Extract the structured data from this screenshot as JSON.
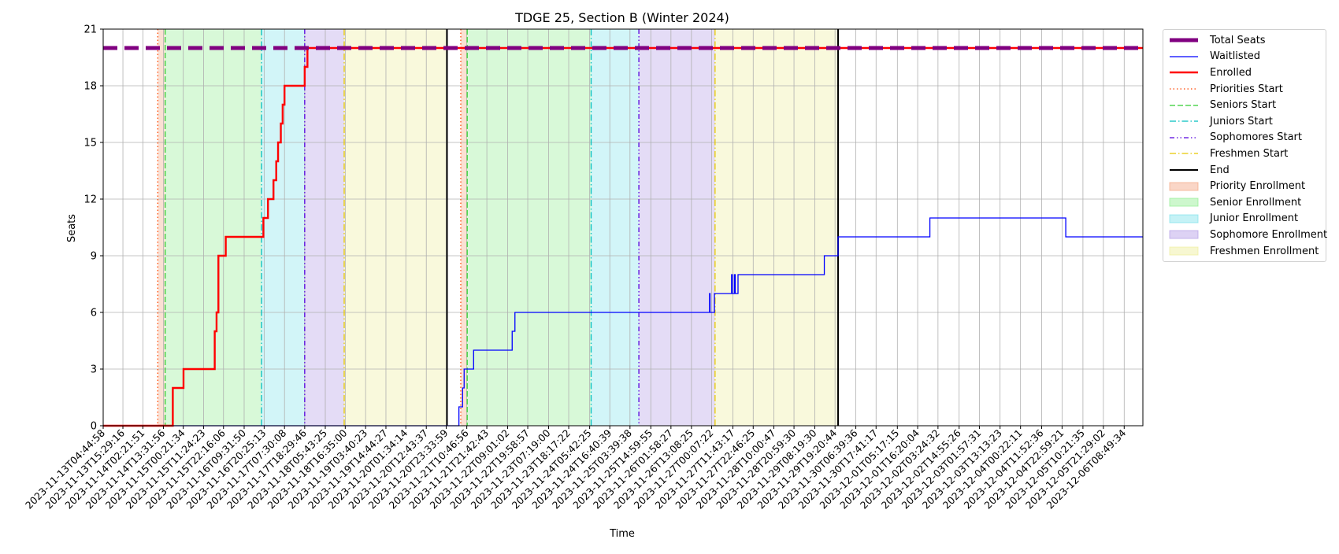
{
  "chart_data": {
    "type": "line",
    "title": "TDGE 25, Section B (Winter 2024)",
    "xlabel": "Time",
    "ylabel": "Seats",
    "ylim": [
      0,
      21
    ],
    "yticks": [
      0,
      3,
      6,
      9,
      12,
      15,
      18,
      21
    ],
    "xlim": [
      "2023-11-13T04:44:58",
      "2023-12-06T19:00:00"
    ],
    "xtick_labels": [
      "2023-11-13T04:44:58",
      "2023-11-13T15:29:16",
      "2023-11-14T02:21:51",
      "2023-11-14T13:31:56",
      "2023-11-15T00:21:34",
      "2023-11-15T11:24:23",
      "2023-11-15T22:16:06",
      "2023-11-16T09:31:50",
      "2023-11-16T20:25:13",
      "2023-11-17T07:30:08",
      "2023-11-17T18:29:46",
      "2023-11-18T05:43:25",
      "2023-11-18T16:35:00",
      "2023-11-19T03:40:23",
      "2023-11-19T14:44:27",
      "2023-11-20T01:34:14",
      "2023-11-20T12:43:37",
      "2023-11-20T23:33:59",
      "2023-11-21T10:46:56",
      "2023-11-21T21:42:43",
      "2023-11-22T09:01:02",
      "2023-11-22T19:58:57",
      "2023-11-23T07:19:00",
      "2023-11-23T18:17:22",
      "2023-11-24T05:42:25",
      "2023-11-24T16:40:39",
      "2023-11-25T03:39:38",
      "2023-11-25T14:59:55",
      "2023-11-26T01:58:27",
      "2023-11-26T13:08:25",
      "2023-11-27T00:07:22",
      "2023-11-27T11:43:17",
      "2023-11-27T22:46:25",
      "2023-11-28T10:00:47",
      "2023-11-28T20:59:30",
      "2023-11-29T08:19:30",
      "2023-11-29T19:20:44",
      "2023-11-30T06:39:36",
      "2023-11-30T17:41:17",
      "2023-12-01T05:17:15",
      "2023-12-01T16:20:04",
      "2023-12-02T03:24:32",
      "2023-12-02T14:55:26",
      "2023-12-03T01:57:31",
      "2023-12-03T13:13:23",
      "2023-12-04T00:22:11",
      "2023-12-04T11:52:36",
      "2023-12-04T22:59:21",
      "2023-12-05T10:21:35",
      "2023-12-05T21:29:02",
      "2023-12-06T08:49:34"
    ],
    "grid": true,
    "legend_position": "outside-right",
    "colors": {
      "total": "#800080",
      "waitlisted": "#0000ff",
      "enrolled": "#ff0000",
      "priority_line": "#ff4500",
      "senior_line": "#32cd32",
      "junior_line": "#00bfbf",
      "sophomore_line": "#5500dd",
      "freshmen_line": "#e6c800",
      "end_line": "#000000",
      "priority_fill": "#f4a582",
      "senior_fill": "#90ee90",
      "junior_fill": "#7ee3ea",
      "sophomore_fill": "#b39ce6",
      "freshmen_fill": "#eeee9a"
    },
    "series": [
      {
        "name": "Total Seats",
        "key": "total",
        "style": "dashed-thick",
        "points": [
          [
            "2023-11-13T04:44:58",
            20
          ],
          [
            "2023-12-06T19:00:00",
            20
          ]
        ]
      },
      {
        "name": "Waitlisted",
        "key": "waitlisted",
        "style": "step",
        "points": [
          [
            "2023-11-13T04:44:58",
            0
          ],
          [
            "2023-11-21T05:30:00",
            0
          ],
          [
            "2023-11-21T06:30:00",
            1
          ],
          [
            "2023-11-21T08:30:00",
            2
          ],
          [
            "2023-11-21T09:20:00",
            3
          ],
          [
            "2023-11-21T14:30:00",
            4
          ],
          [
            "2023-11-22T11:30:00",
            5
          ],
          [
            "2023-11-22T13:00:00",
            6
          ],
          [
            "2023-11-26T23:00:00",
            7
          ],
          [
            "2023-11-26T23:15:00",
            6
          ],
          [
            "2023-11-27T01:40:00",
            7
          ],
          [
            "2023-11-27T11:00:00",
            8
          ],
          [
            "2023-11-27T11:20:00",
            7
          ],
          [
            "2023-11-27T12:30:00",
            8
          ],
          [
            "2023-11-27T13:00:00",
            7
          ],
          [
            "2023-11-27T14:30:00",
            8
          ],
          [
            "2023-11-29T13:30:00",
            9
          ],
          [
            "2023-11-29T21:00:00",
            10
          ],
          [
            "2023-12-01T23:00:00",
            11
          ],
          [
            "2023-12-05T01:00:00",
            10
          ],
          [
            "2023-12-06T19:00:00",
            10
          ]
        ]
      },
      {
        "name": "Enrolled",
        "key": "enrolled",
        "style": "step-thick",
        "points": [
          [
            "2023-11-13T04:44:58",
            0
          ],
          [
            "2023-11-14T18:00:00",
            0
          ],
          [
            "2023-11-14T18:40:00",
            2
          ],
          [
            "2023-11-15T00:30:00",
            3
          ],
          [
            "2023-11-15T17:30:00",
            5
          ],
          [
            "2023-11-15T18:30:00",
            6
          ],
          [
            "2023-11-15T19:30:00",
            9
          ],
          [
            "2023-11-15T23:30:00",
            10
          ],
          [
            "2023-11-16T20:00:00",
            11
          ],
          [
            "2023-11-16T22:30:00",
            12
          ],
          [
            "2023-11-17T01:30:00",
            13
          ],
          [
            "2023-11-17T03:00:00",
            14
          ],
          [
            "2023-11-17T04:00:00",
            15
          ],
          [
            "2023-11-17T05:30:00",
            16
          ],
          [
            "2023-11-17T06:30:00",
            17
          ],
          [
            "2023-11-17T07:30:00",
            18
          ],
          [
            "2023-11-17T18:30:00",
            19
          ],
          [
            "2023-11-17T20:00:00",
            20
          ],
          [
            "2023-12-06T19:00:00",
            20
          ]
        ]
      }
    ],
    "periods": [
      {
        "name": "Priority Enrollment",
        "fill": "priority_fill",
        "start": "2023-11-14T10:30:00",
        "end": "2023-11-14T14:30:00"
      },
      {
        "name": "Senior Enrollment",
        "fill": "senior_fill",
        "start": "2023-11-14T14:30:00",
        "end": "2023-11-16T19:00:00"
      },
      {
        "name": "Junior Enrollment",
        "fill": "junior_fill",
        "start": "2023-11-16T19:00:00",
        "end": "2023-11-17T18:30:00"
      },
      {
        "name": "Sophomore Enrollment",
        "fill": "sophomore_fill",
        "start": "2023-11-17T18:30:00",
        "end": "2023-11-18T16:00:00"
      },
      {
        "name": "Freshmen Enrollment",
        "fill": "freshmen_fill",
        "start": "2023-11-18T16:00:00",
        "end": "2023-11-21T00:00:00"
      },
      {
        "name": "Priority Enrollment",
        "fill": "priority_fill",
        "start": "2023-11-21T07:30:00",
        "end": "2023-11-21T11:00:00"
      },
      {
        "name": "Senior Enrollment",
        "fill": "senior_fill",
        "start": "2023-11-21T11:00:00",
        "end": "2023-11-24T06:30:00"
      },
      {
        "name": "Junior Enrollment",
        "fill": "junior_fill",
        "start": "2023-11-24T06:30:00",
        "end": "2023-11-25T08:30:00"
      },
      {
        "name": "Sophomore Enrollment",
        "fill": "sophomore_fill",
        "start": "2023-11-25T08:30:00",
        "end": "2023-11-27T02:00:00"
      },
      {
        "name": "Freshmen Enrollment",
        "fill": "freshmen_fill",
        "start": "2023-11-27T02:00:00",
        "end": "2023-11-29T21:00:00"
      }
    ],
    "markers": [
      {
        "name": "Priorities Start",
        "key": "priority_line",
        "dash": "dotted",
        "t": "2023-11-14T10:30:00"
      },
      {
        "name": "Seniors Start",
        "key": "senior_line",
        "dash": "dashed",
        "t": "2023-11-14T14:30:00"
      },
      {
        "name": "Juniors Start",
        "key": "junior_line",
        "dash": "dashdot",
        "t": "2023-11-16T19:00:00"
      },
      {
        "name": "Sophomores Start",
        "key": "sophomore_line",
        "dash": "dashdotdot",
        "t": "2023-11-17T18:30:00"
      },
      {
        "name": "Freshmen Start",
        "key": "freshmen_line",
        "dash": "dashdot",
        "t": "2023-11-18T16:00:00"
      },
      {
        "name": "End",
        "key": "end_line",
        "dash": "solid",
        "t": "2023-11-21T00:00:00"
      },
      {
        "name": "Priorities Start",
        "key": "priority_line",
        "dash": "dotted",
        "t": "2023-11-21T07:30:00"
      },
      {
        "name": "Seniors Start",
        "key": "senior_line",
        "dash": "dashed",
        "t": "2023-11-21T11:00:00"
      },
      {
        "name": "Juniors Start",
        "key": "junior_line",
        "dash": "dashdot",
        "t": "2023-11-24T06:30:00"
      },
      {
        "name": "Sophomores Start",
        "key": "sophomore_line",
        "dash": "dashdotdot",
        "t": "2023-11-25T08:30:00"
      },
      {
        "name": "Freshmen Start",
        "key": "freshmen_line",
        "dash": "dashdot",
        "t": "2023-11-27T02:00:00"
      },
      {
        "name": "End",
        "key": "end_line",
        "dash": "solid",
        "t": "2023-11-29T21:00:00"
      }
    ],
    "legend": [
      {
        "label": "Total Seats",
        "kind": "line",
        "key": "total",
        "dash": "solid-thick"
      },
      {
        "label": "Waitlisted",
        "kind": "line",
        "key": "waitlisted",
        "dash": "solid"
      },
      {
        "label": "Enrolled",
        "kind": "line",
        "key": "enrolled",
        "dash": "solid-medium"
      },
      {
        "label": "Priorities Start",
        "kind": "line",
        "key": "priority_line",
        "dash": "dotted"
      },
      {
        "label": "Seniors Start",
        "kind": "line",
        "key": "senior_line",
        "dash": "dashed"
      },
      {
        "label": "Juniors Start",
        "kind": "line",
        "key": "junior_line",
        "dash": "dashdot"
      },
      {
        "label": "Sophomores Start",
        "kind": "line",
        "key": "sophomore_line",
        "dash": "dashdotdot"
      },
      {
        "label": "Freshmen Start",
        "kind": "line",
        "key": "freshmen_line",
        "dash": "dashdot"
      },
      {
        "label": "End",
        "kind": "line",
        "key": "end_line",
        "dash": "solid"
      },
      {
        "label": "Priority Enrollment",
        "kind": "patch",
        "key": "priority_fill"
      },
      {
        "label": "Senior Enrollment",
        "kind": "patch",
        "key": "senior_fill"
      },
      {
        "label": "Junior Enrollment",
        "kind": "patch",
        "key": "junior_fill"
      },
      {
        "label": "Sophomore Enrollment",
        "kind": "patch",
        "key": "sophomore_fill"
      },
      {
        "label": "Freshmen Enrollment",
        "kind": "patch",
        "key": "freshmen_fill"
      }
    ]
  }
}
